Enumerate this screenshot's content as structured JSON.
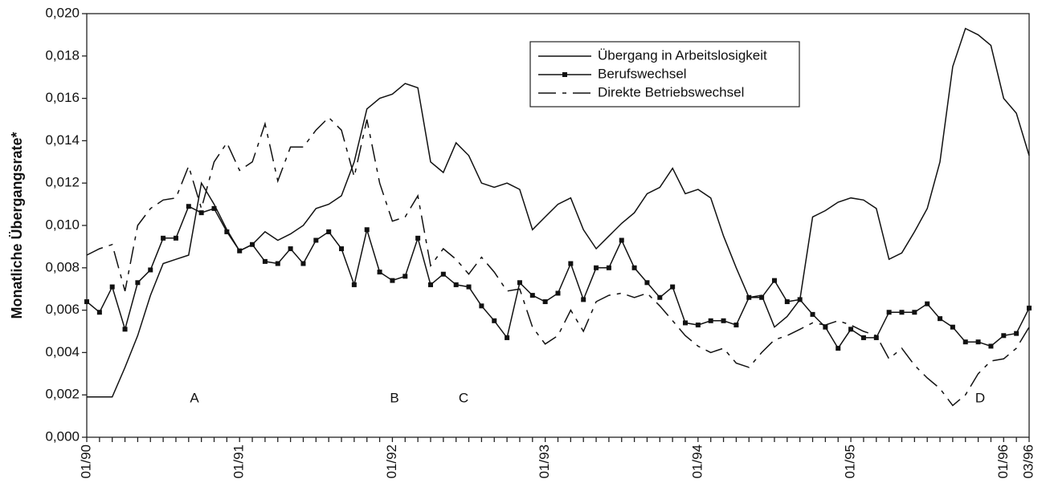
{
  "chart_data": {
    "type": "line",
    "y_label": "Monatliche Übergangsrate*",
    "categories": [
      "01/90",
      null,
      null,
      null,
      null,
      null,
      null,
      null,
      null,
      null,
      null,
      null,
      "01/91",
      null,
      null,
      null,
      null,
      null,
      null,
      null,
      null,
      null,
      null,
      null,
      "01/92",
      null,
      null,
      null,
      null,
      null,
      null,
      null,
      null,
      null,
      null,
      null,
      "01/93",
      null,
      null,
      null,
      null,
      null,
      null,
      null,
      null,
      null,
      null,
      null,
      "01/94",
      null,
      null,
      null,
      null,
      null,
      null,
      null,
      null,
      null,
      null,
      null,
      "01/95",
      null,
      null,
      null,
      null,
      null,
      null,
      null,
      null,
      null,
      null,
      null,
      "01/96",
      null,
      "03/96"
    ],
    "series": [
      {
        "name": "Übergang in Arbeitslosigkeit",
        "color": "#111111",
        "dash": "solid",
        "markers": false,
        "values": [
          0.0019,
          0.0019,
          0.0019,
          0.0033,
          0.0048,
          0.0067,
          0.0082,
          0.0084,
          0.0086,
          0.012,
          0.011,
          0.0098,
          0.0088,
          0.0091,
          0.0097,
          0.0093,
          0.0096,
          0.01,
          0.0108,
          0.011,
          0.0114,
          0.013,
          0.0155,
          0.016,
          0.0162,
          0.0167,
          0.0165,
          0.013,
          0.0125,
          0.0139,
          0.0133,
          0.012,
          0.0118,
          0.012,
          0.0117,
          0.0098,
          0.0104,
          0.011,
          0.0113,
          0.0098,
          0.0089,
          0.0095,
          0.0101,
          0.0106,
          0.0115,
          0.0118,
          0.0127,
          0.0115,
          0.0117,
          0.0113,
          0.0095,
          0.008,
          0.0066,
          0.0067,
          0.0052,
          0.0057,
          0.0065,
          0.0104,
          0.0107,
          0.0111,
          0.0113,
          0.0112,
          0.0108,
          0.0084,
          0.0087,
          0.0097,
          0.0108,
          0.013,
          0.0175,
          0.0193,
          0.019,
          0.0185,
          0.016,
          0.0153,
          0.0133
        ]
      },
      {
        "name": "Berufswechsel",
        "color": "#111111",
        "dash": "solid",
        "markers": true,
        "values": [
          0.0064,
          0.0059,
          0.0071,
          0.0051,
          0.0073,
          0.0079,
          0.0094,
          0.0094,
          0.0109,
          0.0106,
          0.0108,
          0.0097,
          0.0088,
          0.0091,
          0.0083,
          0.0082,
          0.0089,
          0.0082,
          0.0093,
          0.0097,
          0.0089,
          0.0072,
          0.0098,
          0.0078,
          0.0074,
          0.0076,
          0.0094,
          0.0072,
          0.0077,
          0.0072,
          0.0071,
          0.0062,
          0.0055,
          0.0047,
          0.0073,
          0.0067,
          0.0064,
          0.0068,
          0.0082,
          0.0065,
          0.008,
          0.008,
          0.0093,
          0.008,
          0.0073,
          0.0066,
          0.0071,
          0.0054,
          0.0053,
          0.0055,
          0.0055,
          0.0053,
          0.0066,
          0.0066,
          0.0074,
          0.0064,
          0.0065,
          0.0058,
          0.0052,
          0.0042,
          0.0051,
          0.0047,
          0.0047,
          0.0059,
          0.0059,
          0.0059,
          0.0063,
          0.0056,
          0.0052,
          0.0045,
          0.0045,
          0.0043,
          0.0048,
          0.0049,
          0.0061
        ]
      },
      {
        "name": "Direkte Betriebswechsel",
        "color": "#111111",
        "dash": "dashed",
        "markers": false,
        "values": [
          0.0086,
          0.0089,
          0.0091,
          0.0069,
          0.01,
          0.0108,
          0.0112,
          0.0113,
          0.0128,
          0.0108,
          0.013,
          0.0139,
          0.0126,
          0.013,
          0.0148,
          0.0121,
          0.0137,
          0.0137,
          0.0145,
          0.0151,
          0.0145,
          0.0123,
          0.015,
          0.012,
          0.0102,
          0.0104,
          0.0114,
          0.0081,
          0.0089,
          0.0084,
          0.0077,
          0.0085,
          0.0078,
          0.0069,
          0.007,
          0.0052,
          0.0044,
          0.0048,
          0.006,
          0.005,
          0.0064,
          0.0067,
          0.0068,
          0.0066,
          0.0068,
          0.0062,
          0.0055,
          0.0048,
          0.0043,
          0.004,
          0.0042,
          0.0035,
          0.0033,
          0.004,
          0.0046,
          0.0048,
          0.0051,
          0.0054,
          0.0053,
          0.0055,
          0.0053,
          0.005,
          0.0048,
          0.0037,
          0.0042,
          0.0034,
          0.0028,
          0.0023,
          0.0015,
          0.002,
          0.003,
          0.0036,
          0.0037,
          0.0042,
          0.0052
        ]
      }
    ],
    "annotations": [
      "A",
      "B",
      "C",
      "D"
    ],
    "ylim": [
      0,
      0.02
    ],
    "yticks": [
      {
        "value": 0,
        "label": "0,000"
      },
      {
        "value": 0.002,
        "label": "0,002"
      },
      {
        "value": 0.004,
        "label": "0,004"
      },
      {
        "value": 0.006,
        "label": "0,006"
      },
      {
        "value": 0.008,
        "label": "0,008"
      },
      {
        "value": 0.01,
        "label": "0,010"
      },
      {
        "value": 0.012,
        "label": "0,012"
      },
      {
        "value": 0.014,
        "label": "0,014"
      },
      {
        "value": 0.016,
        "label": "0,016"
      },
      {
        "value": 0.018,
        "label": "0,018"
      },
      {
        "value": 0.02,
        "label": "0,020"
      }
    ],
    "grid": false,
    "legend": "upper right"
  }
}
